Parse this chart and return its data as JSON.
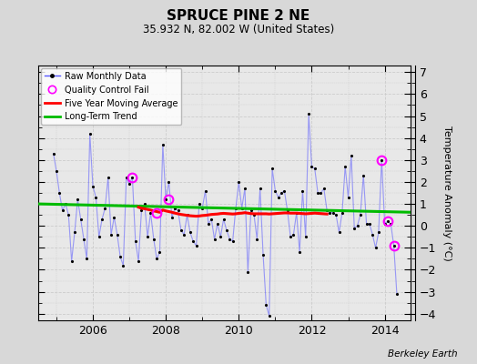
{
  "title": "SPRUCE PINE 2 NE",
  "subtitle": "35.932 N, 82.002 W (United States)",
  "ylabel": "Temperature Anomaly (°C)",
  "watermark": "Berkeley Earth",
  "ylim": [
    -4.3,
    7.3
  ],
  "xlim": [
    2004.5,
    2014.7
  ],
  "yticks": [
    -4,
    -3,
    -2,
    -1,
    0,
    1,
    2,
    3,
    4,
    5,
    6,
    7
  ],
  "xticks": [
    2006,
    2008,
    2010,
    2012,
    2014
  ],
  "bg_color": "#d8d8d8",
  "plot_bg_color": "#e8e8e8",
  "raw_color": "#5555ff",
  "ma_color": "#ff0000",
  "trend_color": "#00bb00",
  "qc_color": "magenta",
  "raw_data": {
    "x": [
      2004.917,
      2005.0,
      2005.083,
      2005.167,
      2005.25,
      2005.333,
      2005.417,
      2005.5,
      2005.583,
      2005.667,
      2005.75,
      2005.833,
      2005.917,
      2006.0,
      2006.083,
      2006.167,
      2006.25,
      2006.333,
      2006.417,
      2006.5,
      2006.583,
      2006.667,
      2006.75,
      2006.833,
      2006.917,
      2007.0,
      2007.083,
      2007.167,
      2007.25,
      2007.333,
      2007.417,
      2007.5,
      2007.583,
      2007.667,
      2007.75,
      2007.833,
      2007.917,
      2008.0,
      2008.083,
      2008.167,
      2008.25,
      2008.333,
      2008.417,
      2008.5,
      2008.583,
      2008.667,
      2008.75,
      2008.833,
      2008.917,
      2009.0,
      2009.083,
      2009.167,
      2009.25,
      2009.333,
      2009.417,
      2009.5,
      2009.583,
      2009.667,
      2009.75,
      2009.833,
      2009.917,
      2010.0,
      2010.083,
      2010.167,
      2010.25,
      2010.333,
      2010.417,
      2010.5,
      2010.583,
      2010.667,
      2010.75,
      2010.833,
      2010.917,
      2011.0,
      2011.083,
      2011.167,
      2011.25,
      2011.333,
      2011.417,
      2011.5,
      2011.583,
      2011.667,
      2011.75,
      2011.833,
      2011.917,
      2012.0,
      2012.083,
      2012.167,
      2012.25,
      2012.333,
      2012.417,
      2012.5,
      2012.583,
      2012.667,
      2012.75,
      2012.833,
      2012.917,
      2013.0,
      2013.083,
      2013.167,
      2013.25,
      2013.333,
      2013.417,
      2013.5,
      2013.583,
      2013.667,
      2013.75,
      2013.833,
      2013.917,
      2014.0,
      2014.083,
      2014.167,
      2014.25,
      2014.333
    ],
    "y": [
      3.3,
      2.5,
      1.5,
      0.7,
      1.0,
      0.5,
      -1.6,
      -0.3,
      1.2,
      0.3,
      -0.6,
      -1.5,
      4.2,
      1.8,
      1.3,
      -0.5,
      0.3,
      0.8,
      2.2,
      -0.4,
      0.4,
      -0.4,
      -1.4,
      -1.8,
      2.2,
      1.9,
      2.2,
      -0.7,
      -1.6,
      0.7,
      1.0,
      -0.5,
      0.6,
      -0.6,
      -1.5,
      -1.2,
      3.7,
      1.2,
      2.0,
      0.4,
      0.8,
      0.7,
      -0.2,
      -0.4,
      0.5,
      -0.3,
      -0.7,
      -0.9,
      1.0,
      0.8,
      1.6,
      0.1,
      0.3,
      -0.6,
      0.1,
      -0.5,
      0.3,
      -0.2,
      -0.6,
      -0.7,
      0.8,
      2.0,
      0.8,
      1.7,
      -2.1,
      0.7,
      0.5,
      -0.6,
      1.7,
      -1.3,
      -3.6,
      -4.1,
      2.6,
      1.6,
      1.3,
      1.5,
      1.6,
      0.7,
      -0.5,
      -0.4,
      0.6,
      -1.2,
      1.6,
      -0.5,
      5.1,
      2.7,
      2.6,
      1.5,
      1.5,
      1.7,
      0.7,
      0.6,
      0.6,
      0.5,
      -0.3,
      0.6,
      2.7,
      1.3,
      3.2,
      -0.1,
      0.0,
      0.5,
      2.3,
      0.1,
      0.1,
      -0.4,
      -1.0,
      -0.3,
      3.0,
      0.1,
      0.2,
      0.1,
      -0.9,
      -3.1
    ]
  },
  "ma_data": {
    "x": [
      2007.25,
      2007.333,
      2007.417,
      2007.5,
      2007.583,
      2007.667,
      2007.75,
      2007.833,
      2007.917,
      2008.0,
      2008.083,
      2008.167,
      2008.25,
      2008.333,
      2008.417,
      2008.5,
      2008.583,
      2008.667,
      2008.75,
      2008.833,
      2008.917,
      2009.0,
      2009.083,
      2009.167,
      2009.25,
      2009.333,
      2009.417,
      2009.5,
      2009.583,
      2009.667,
      2009.75,
      2009.833,
      2009.917,
      2010.0,
      2010.083,
      2010.167,
      2010.25,
      2010.333,
      2010.417,
      2010.5,
      2010.583,
      2010.667,
      2010.75,
      2010.833,
      2010.917,
      2011.0,
      2011.083,
      2011.167,
      2011.25,
      2011.333,
      2011.417,
      2011.5,
      2011.583,
      2011.667,
      2011.75,
      2011.833,
      2011.917,
      2012.0,
      2012.083,
      2012.167,
      2012.25,
      2012.333,
      2012.417
    ],
    "y": [
      0.85,
      0.8,
      0.78,
      0.75,
      0.72,
      0.68,
      0.65,
      0.62,
      0.72,
      0.68,
      0.65,
      0.62,
      0.58,
      0.55,
      0.52,
      0.5,
      0.48,
      0.46,
      0.45,
      0.44,
      0.45,
      0.47,
      0.48,
      0.5,
      0.52,
      0.53,
      0.54,
      0.56,
      0.57,
      0.56,
      0.55,
      0.54,
      0.55,
      0.57,
      0.58,
      0.6,
      0.58,
      0.56,
      0.55,
      0.55,
      0.55,
      0.55,
      0.55,
      0.54,
      0.55,
      0.56,
      0.57,
      0.58,
      0.59,
      0.59,
      0.58,
      0.58,
      0.58,
      0.57,
      0.56,
      0.55,
      0.56,
      0.57,
      0.58,
      0.57,
      0.56,
      0.55,
      0.54
    ]
  },
  "trend": {
    "x": [
      2004.5,
      2014.7
    ],
    "y": [
      1.0,
      0.62
    ]
  },
  "qc_points": {
    "x": [
      2007.083,
      2007.75,
      2008.083,
      2013.917,
      2014.083,
      2014.25
    ],
    "y": [
      2.2,
      0.6,
      1.2,
      3.0,
      0.2,
      -0.9
    ]
  }
}
